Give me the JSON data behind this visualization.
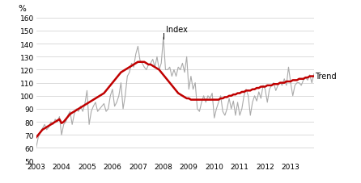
{
  "ylabel": "%",
  "ylim": [
    50,
    160
  ],
  "yticks": [
    50,
    60,
    70,
    80,
    90,
    100,
    110,
    120,
    130,
    140,
    150,
    160
  ],
  "xlim_start": 2003.0,
  "xlim_end": 2013.92,
  "index_label": "Index",
  "trend_label": "Trend",
  "index_color": "#aaaaaa",
  "trend_color": "#c00000",
  "background_color": "#ffffff",
  "grid_color": "#cccccc",
  "index_data": [
    60,
    68,
    72,
    75,
    78,
    74,
    76,
    80,
    78,
    82,
    80,
    84,
    70,
    78,
    80,
    85,
    88,
    78,
    86,
    90,
    88,
    92,
    88,
    94,
    104,
    78,
    88,
    92,
    95,
    88,
    90,
    92,
    94,
    88,
    90,
    100,
    105,
    92,
    95,
    100,
    110,
    90,
    100,
    115,
    118,
    125,
    122,
    132,
    138,
    127,
    125,
    122,
    120,
    124,
    125,
    128,
    122,
    130,
    120,
    125,
    145,
    120,
    120,
    122,
    115,
    120,
    115,
    122,
    120,
    125,
    118,
    130,
    105,
    115,
    105,
    110,
    90,
    88,
    95,
    100,
    95,
    100,
    98,
    102,
    83,
    90,
    95,
    100,
    88,
    85,
    90,
    98,
    90,
    96,
    85,
    95,
    85,
    90,
    100,
    105,
    100,
    85,
    95,
    100,
    96,
    103,
    98,
    108,
    105,
    95,
    105,
    108,
    110,
    104,
    108,
    110,
    108,
    113,
    108,
    122,
    110,
    100,
    108,
    110,
    110,
    108,
    112,
    114,
    112,
    116,
    110,
    117,
    108,
    112,
    120,
    98,
    114
  ],
  "trend_data": [
    68,
    70,
    72,
    74,
    75,
    76,
    77,
    78,
    79,
    80,
    81,
    82,
    79,
    80,
    82,
    84,
    86,
    87,
    88,
    89,
    90,
    91,
    92,
    93,
    94,
    95,
    96,
    97,
    98,
    99,
    100,
    101,
    102,
    104,
    106,
    108,
    110,
    112,
    114,
    116,
    118,
    119,
    120,
    121,
    122,
    123,
    124,
    125,
    126,
    126,
    126,
    126,
    125,
    124,
    124,
    123,
    122,
    121,
    120,
    118,
    116,
    114,
    112,
    110,
    108,
    106,
    104,
    102,
    101,
    100,
    99,
    98,
    98,
    97,
    97,
    97,
    97,
    97,
    97,
    97,
    97,
    97,
    97,
    97,
    97,
    97,
    97,
    98,
    98,
    99,
    99,
    100,
    100,
    101,
    101,
    102,
    102,
    103,
    103,
    104,
    104,
    104,
    105,
    105,
    106,
    106,
    107,
    107,
    107,
    108,
    108,
    108,
    109,
    109,
    109,
    110,
    110,
    110,
    111,
    111,
    111,
    112,
    112,
    112,
    113,
    113,
    113,
    114,
    114,
    115,
    115,
    115,
    115,
    115,
    115,
    115,
    115
  ]
}
